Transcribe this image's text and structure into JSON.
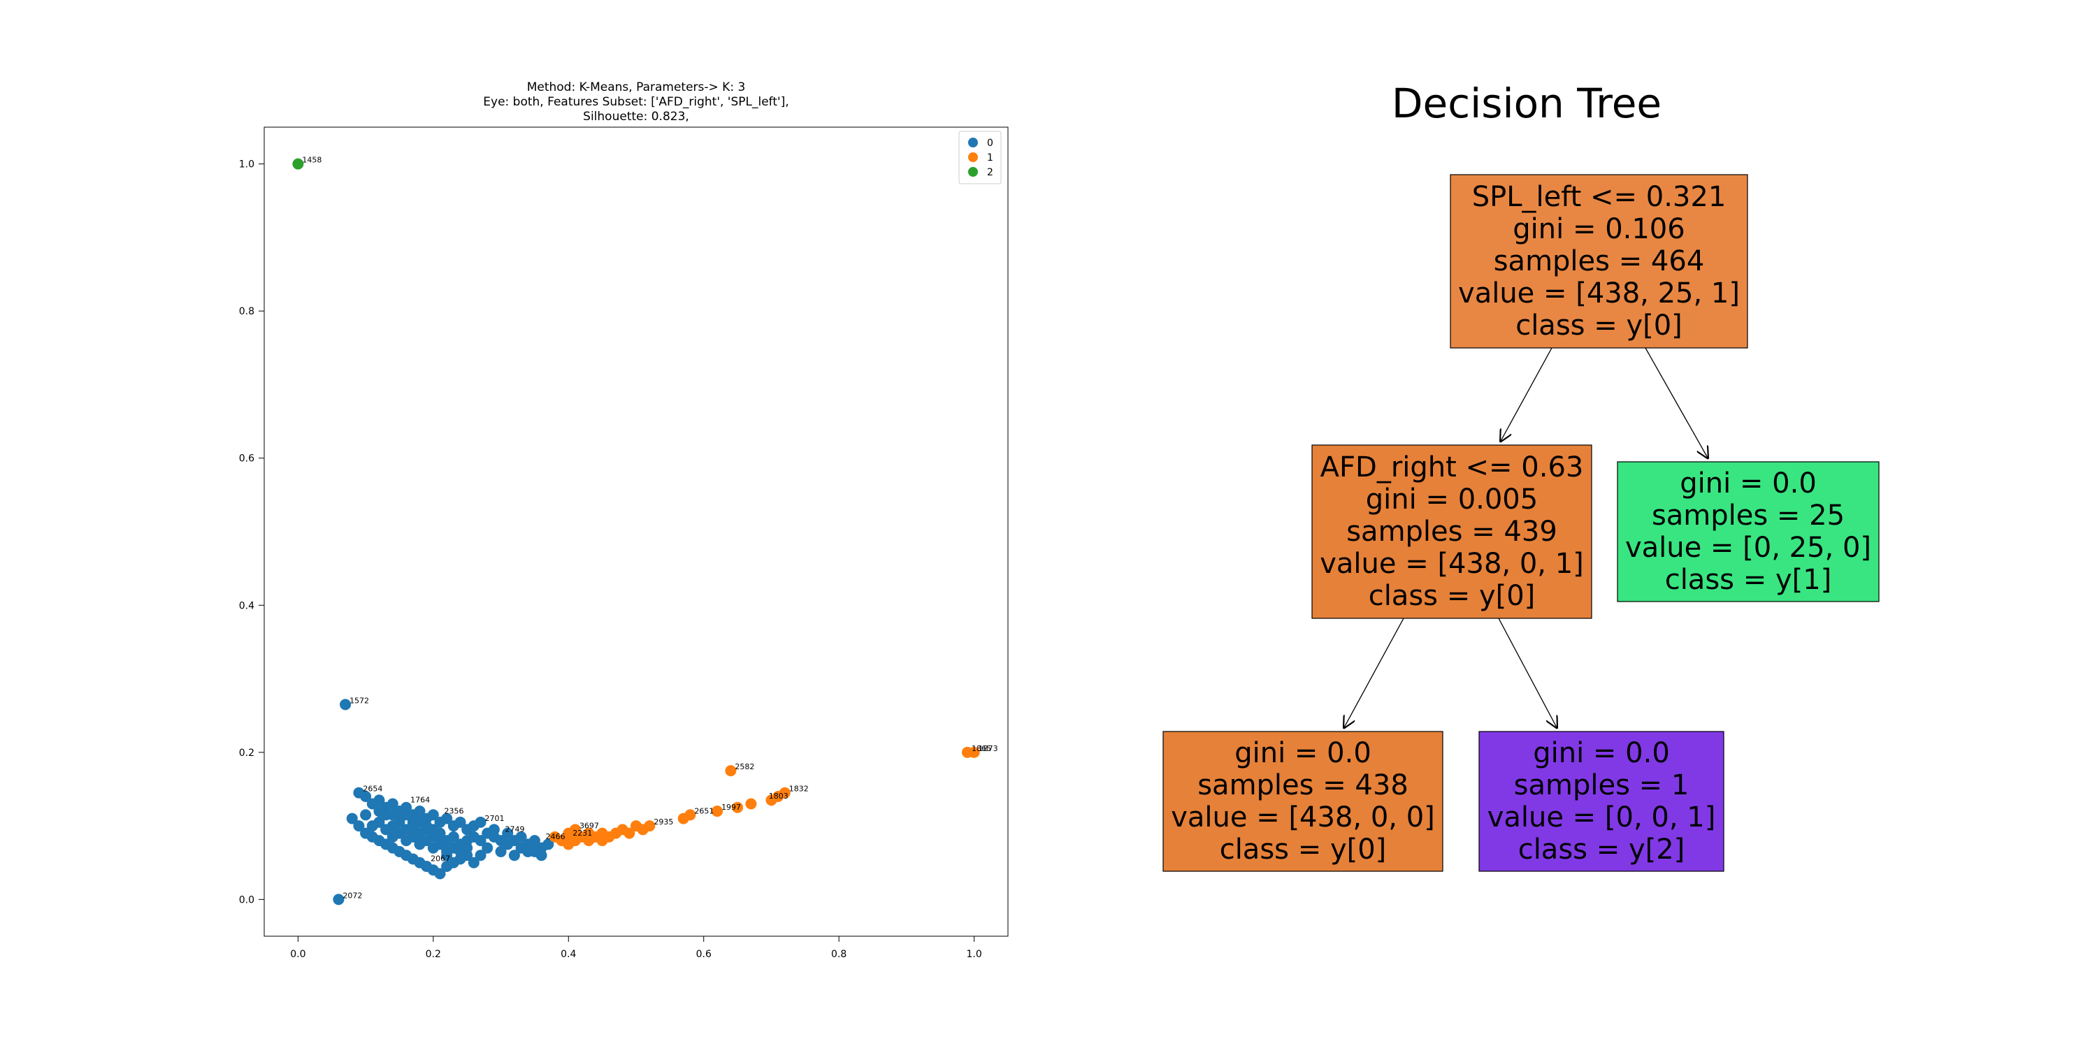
{
  "chart_data": [
    {
      "type": "scatter",
      "title_lines": [
        "Method: K-Means, Parameters-> K: 3",
        "Eye: both, Features Subset: ['AFD_right', 'SPL_left'],",
        "Silhouette: 0.823,"
      ],
      "xlabel": "",
      "ylabel": "",
      "xlim": [
        -0.05,
        1.05
      ],
      "ylim": [
        -0.05,
        1.05
      ],
      "x_ticks": [
        0.0,
        0.2,
        0.4,
        0.6,
        0.8,
        1.0
      ],
      "y_ticks": [
        0.0,
        0.2,
        0.4,
        0.6,
        0.8,
        1.0
      ],
      "x_tick_labels": [
        "0.0",
        "0.2",
        "0.4",
        "0.6",
        "0.8",
        "1.0"
      ],
      "y_tick_labels": [
        "0.0",
        "0.2",
        "0.4",
        "0.6",
        "0.8",
        "1.0"
      ],
      "grid": false,
      "legend_position": "top-right",
      "series": [
        {
          "name": "0",
          "color": "#1f77b4",
          "points": [
            [
              0.07,
              0.265
            ],
            [
              0.06,
              0.0
            ],
            [
              0.09,
              0.145
            ],
            [
              0.1,
              0.14
            ],
            [
              0.11,
              0.13
            ],
            [
              0.12,
              0.135
            ],
            [
              0.13,
              0.125
            ],
            [
              0.14,
              0.13
            ],
            [
              0.15,
              0.12
            ],
            [
              0.16,
              0.125
            ],
            [
              0.17,
              0.115
            ],
            [
              0.18,
              0.12
            ],
            [
              0.19,
              0.11
            ],
            [
              0.2,
              0.115
            ],
            [
              0.21,
              0.105
            ],
            [
              0.22,
              0.11
            ],
            [
              0.23,
              0.1
            ],
            [
              0.24,
              0.105
            ],
            [
              0.25,
              0.095
            ],
            [
              0.26,
              0.1
            ],
            [
              0.27,
              0.105
            ],
            [
              0.28,
              0.09
            ],
            [
              0.29,
              0.085
            ],
            [
              0.3,
              0.08
            ],
            [
              0.31,
              0.075
            ],
            [
              0.32,
              0.08
            ],
            [
              0.33,
              0.07
            ],
            [
              0.34,
              0.075
            ],
            [
              0.35,
              0.065
            ],
            [
              0.36,
              0.07
            ],
            [
              0.08,
              0.11
            ],
            [
              0.09,
              0.1
            ],
            [
              0.1,
              0.09
            ],
            [
              0.11,
              0.085
            ],
            [
              0.12,
              0.08
            ],
            [
              0.13,
              0.075
            ],
            [
              0.14,
              0.07
            ],
            [
              0.15,
              0.065
            ],
            [
              0.16,
              0.06
            ],
            [
              0.17,
              0.055
            ],
            [
              0.18,
              0.05
            ],
            [
              0.19,
              0.045
            ],
            [
              0.2,
              0.04
            ],
            [
              0.21,
              0.035
            ],
            [
              0.22,
              0.045
            ],
            [
              0.23,
              0.05
            ],
            [
              0.24,
              0.055
            ],
            [
              0.25,
              0.06
            ],
            [
              0.26,
              0.05
            ],
            [
              0.27,
              0.06
            ],
            [
              0.1,
              0.115
            ],
            [
              0.12,
              0.105
            ],
            [
              0.14,
              0.1
            ],
            [
              0.16,
              0.095
            ],
            [
              0.18,
              0.09
            ],
            [
              0.2,
              0.085
            ],
            [
              0.22,
              0.08
            ],
            [
              0.24,
              0.075
            ],
            [
              0.13,
              0.115
            ],
            [
              0.15,
              0.105
            ],
            [
              0.17,
              0.1
            ],
            [
              0.19,
              0.095
            ],
            [
              0.21,
              0.09
            ],
            [
              0.23,
              0.085
            ],
            [
              0.25,
              0.08
            ],
            [
              0.11,
              0.1
            ],
            [
              0.13,
              0.095
            ],
            [
              0.15,
              0.09
            ],
            [
              0.17,
              0.085
            ],
            [
              0.19,
              0.08
            ],
            [
              0.21,
              0.075
            ],
            [
              0.23,
              0.07
            ],
            [
              0.14,
              0.085
            ],
            [
              0.16,
              0.08
            ],
            [
              0.18,
              0.075
            ],
            [
              0.2,
              0.07
            ],
            [
              0.22,
              0.065
            ],
            [
              0.15,
              0.11
            ],
            [
              0.17,
              0.105
            ],
            [
              0.19,
              0.1
            ],
            [
              0.16,
              0.115
            ],
            [
              0.18,
              0.105
            ],
            [
              0.2,
              0.095
            ],
            [
              0.12,
              0.12
            ],
            [
              0.14,
              0.115
            ],
            [
              0.28,
              0.07
            ],
            [
              0.3,
              0.065
            ],
            [
              0.32,
              0.06
            ],
            [
              0.34,
              0.065
            ],
            [
              0.36,
              0.06
            ],
            [
              0.29,
              0.095
            ],
            [
              0.31,
              0.09
            ],
            [
              0.33,
              0.085
            ],
            [
              0.35,
              0.08
            ],
            [
              0.37,
              0.075
            ],
            [
              0.26,
              0.085
            ],
            [
              0.27,
              0.08
            ],
            [
              0.25,
              0.07
            ],
            [
              0.24,
              0.065
            ],
            [
              0.22,
              0.06
            ]
          ]
        },
        {
          "name": "1",
          "color": "#ff7f0e",
          "points": [
            [
              0.38,
              0.085
            ],
            [
              0.39,
              0.08
            ],
            [
              0.4,
              0.09
            ],
            [
              0.41,
              0.095
            ],
            [
              0.42,
              0.085
            ],
            [
              0.43,
              0.08
            ],
            [
              0.44,
              0.085
            ],
            [
              0.45,
              0.09
            ],
            [
              0.46,
              0.085
            ],
            [
              0.47,
              0.09
            ],
            [
              0.48,
              0.095
            ],
            [
              0.49,
              0.09
            ],
            [
              0.5,
              0.1
            ],
            [
              0.51,
              0.095
            ],
            [
              0.52,
              0.1
            ],
            [
              0.57,
              0.11
            ],
            [
              0.58,
              0.115
            ],
            [
              0.62,
              0.12
            ],
            [
              0.64,
              0.175
            ],
            [
              0.65,
              0.125
            ],
            [
              0.67,
              0.13
            ],
            [
              0.7,
              0.135
            ],
            [
              0.71,
              0.14
            ],
            [
              0.72,
              0.145
            ],
            [
              0.99,
              0.2
            ],
            [
              1.0,
              0.2
            ],
            [
              0.4,
              0.075
            ],
            [
              0.41,
              0.08
            ],
            [
              0.43,
              0.09
            ],
            [
              0.45,
              0.08
            ]
          ]
        },
        {
          "name": "2",
          "color": "#2ca02c",
          "points": [
            [
              0.0,
              1.0
            ]
          ]
        }
      ],
      "point_annotations": [
        {
          "x": 0.0,
          "y": 1.0,
          "text": "1458"
        },
        {
          "x": 0.07,
          "y": 0.265,
          "text": "1572"
        },
        {
          "x": 0.06,
          "y": 0.0,
          "text": "2072"
        },
        {
          "x": 0.64,
          "y": 0.175,
          "text": "2582"
        },
        {
          "x": 1.0,
          "y": 0.2,
          "text": "1873"
        },
        {
          "x": 0.99,
          "y": 0.2,
          "text": "1865"
        },
        {
          "x": 0.72,
          "y": 0.145,
          "text": "1832"
        },
        {
          "x": 0.69,
          "y": 0.135,
          "text": "1803"
        },
        {
          "x": 0.62,
          "y": 0.12,
          "text": "1997"
        },
        {
          "x": 0.58,
          "y": 0.115,
          "text": "2651"
        },
        {
          "x": 0.52,
          "y": 0.1,
          "text": "2935"
        },
        {
          "x": 0.41,
          "y": 0.095,
          "text": "3697"
        },
        {
          "x": 0.36,
          "y": 0.08,
          "text": "2466"
        },
        {
          "x": 0.27,
          "y": 0.105,
          "text": "2701"
        },
        {
          "x": 0.09,
          "y": 0.145,
          "text": "2654"
        },
        {
          "x": 0.16,
          "y": 0.13,
          "text": "1764"
        },
        {
          "x": 0.21,
          "y": 0.115,
          "text": "2356"
        },
        {
          "x": 0.3,
          "y": 0.09,
          "text": "2749"
        },
        {
          "x": 0.19,
          "y": 0.05,
          "text": "2067"
        },
        {
          "x": 0.4,
          "y": 0.085,
          "text": "2231"
        }
      ]
    },
    {
      "type": "decision-tree",
      "title": "Decision Tree",
      "nodes": [
        {
          "id": "n0",
          "lines": [
            "SPL_left <= 0.321",
            "gini = 0.106",
            "samples = 464",
            "value = [438, 25, 1]",
            "class = y[0]"
          ],
          "color": "#e88743"
        },
        {
          "id": "n1",
          "lines": [
            "AFD_right <= 0.63",
            "gini = 0.005",
            "samples = 439",
            "value = [438, 0, 1]",
            "class = y[0]"
          ],
          "color": "#e68139"
        },
        {
          "id": "n2",
          "lines": [
            "gini = 0.0",
            "samples = 25",
            "value = [0, 25, 0]",
            "class = y[1]"
          ],
          "color": "#39e581"
        },
        {
          "id": "n3",
          "lines": [
            "gini = 0.0",
            "samples = 438",
            "value = [438, 0, 0]",
            "class = y[0]"
          ],
          "color": "#e58139"
        },
        {
          "id": "n4",
          "lines": [
            "gini = 0.0",
            "samples = 1",
            "value = [0, 0, 1]",
            "class = y[2]"
          ],
          "color": "#8139e5"
        }
      ],
      "edges": [
        [
          "n0",
          "n1"
        ],
        [
          "n0",
          "n2"
        ],
        [
          "n1",
          "n3"
        ],
        [
          "n1",
          "n4"
        ]
      ]
    }
  ]
}
